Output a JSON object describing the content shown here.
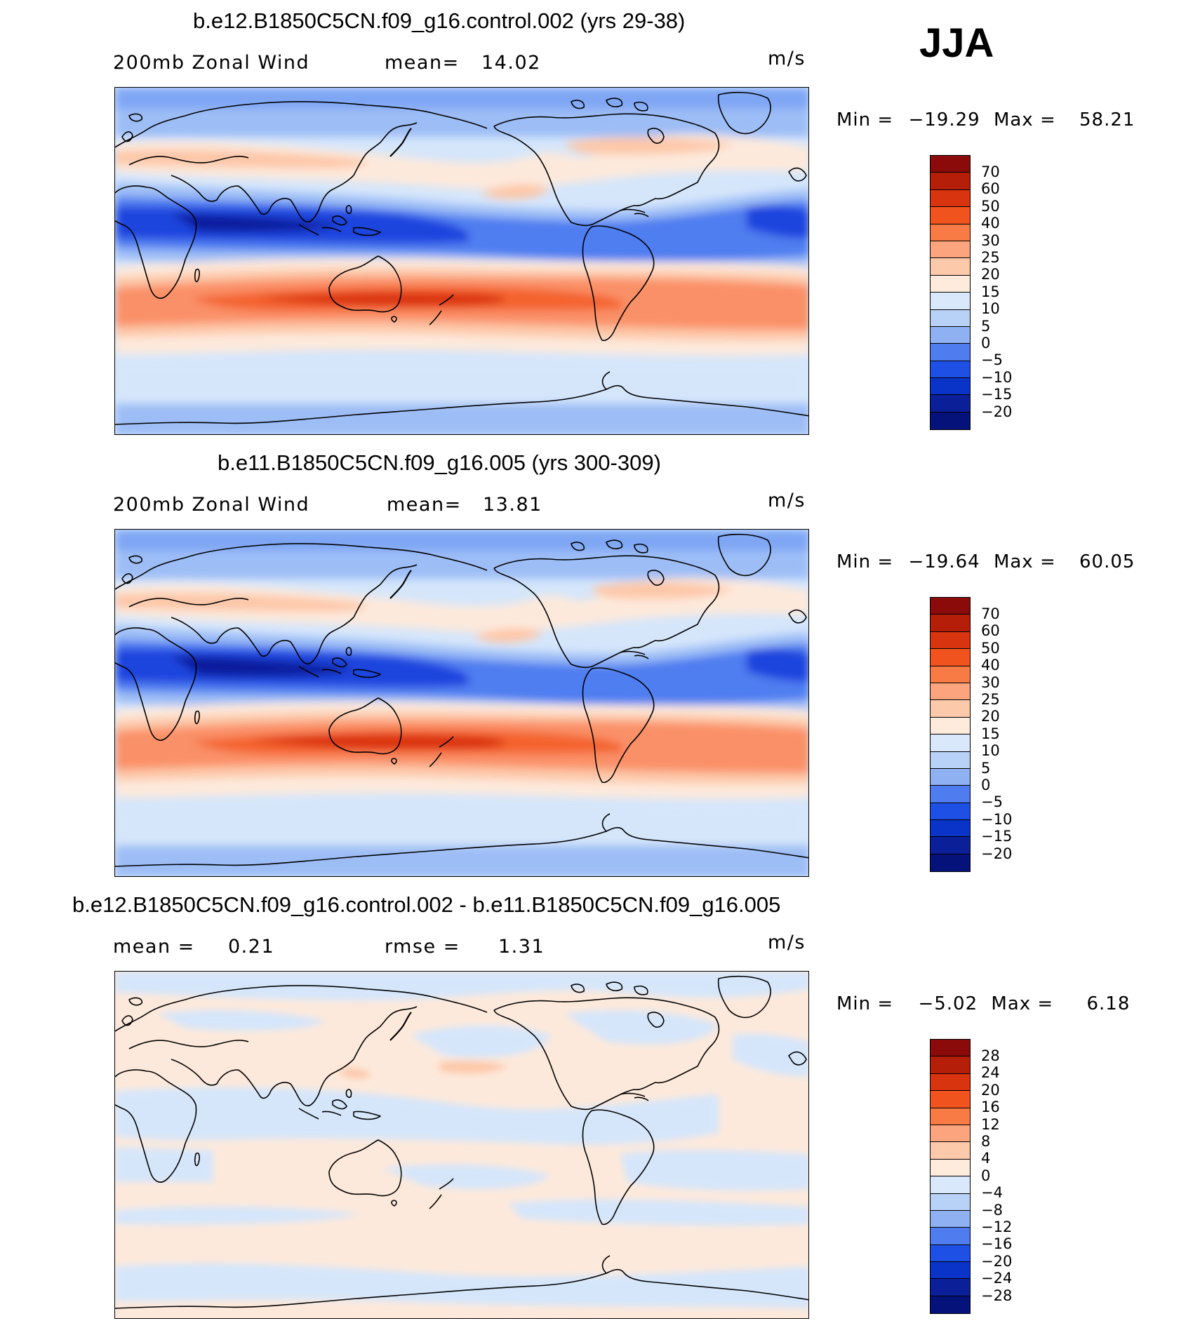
{
  "season": "JJA",
  "colors": {
    "neg4": "#0c1f9e",
    "neg3": "#1c44de",
    "neg2": "#4f7ef0",
    "neg1": "#9dbdf6",
    "zero": "#d5e6fb",
    "pos0": "#fde9db",
    "pos1": "#fdc7a8",
    "pos2": "#fa9068",
    "pos3": "#f4632d",
    "pos4": "#d9300f",
    "land_line": "#000000"
  },
  "panels": [
    {
      "title": "b.e12.B1850C5CN.f09_g16.control.002 (yrs 29-38)",
      "variable": "200mb Zonal Wind",
      "stat1_label": "mean=",
      "stat1_value": "14.02",
      "stat2_label": "",
      "stat2_value": "",
      "units": "m/s",
      "min_label": "Min =",
      "min_value": "−19.29",
      "max_label": "Max =",
      "max_value": "58.21",
      "colorbar_labels": [
        "70",
        "60",
        "50",
        "40",
        "30",
        "25",
        "20",
        "15",
        "10",
        "5",
        "0",
        "−5",
        "−10",
        "−15",
        "−20"
      ],
      "colorbar_colors": [
        "#8b0a0a",
        "#b51f0a",
        "#d93410",
        "#f0531e",
        "#f87b46",
        "#fba47e",
        "#fdc9ab",
        "#feebdc",
        "#d9e8fa",
        "#b8d1f6",
        "#8fb1f2",
        "#4f7df0",
        "#1f50e6",
        "#0a34c8",
        "#0a1f98",
        "#05127a"
      ]
    },
    {
      "title": "b.e11.B1850C5CN.f09_g16.005 (yrs 300-309)",
      "variable": "200mb Zonal Wind",
      "stat1_label": "mean=",
      "stat1_value": "13.81",
      "stat2_label": "",
      "stat2_value": "",
      "units": "m/s",
      "min_label": "Min =",
      "min_value": "−19.64",
      "max_label": "Max =",
      "max_value": "60.05",
      "colorbar_labels": [
        "70",
        "60",
        "50",
        "40",
        "30",
        "25",
        "20",
        "15",
        "10",
        "5",
        "0",
        "−5",
        "−10",
        "−15",
        "−20"
      ],
      "colorbar_colors": [
        "#8b0a0a",
        "#b51f0a",
        "#d93410",
        "#f0531e",
        "#f87b46",
        "#fba47e",
        "#fdc9ab",
        "#feebdc",
        "#d9e8fa",
        "#b8d1f6",
        "#8fb1f2",
        "#4f7df0",
        "#1f50e6",
        "#0a34c8",
        "#0a1f98",
        "#05127a"
      ]
    },
    {
      "title": "b.e12.B1850C5CN.f09_g16.control.002 - b.e11.B1850C5CN.f09_g16.005",
      "variable": "",
      "stat1_label": "mean =",
      "stat1_value": "0.21",
      "stat2_label": "rmse =",
      "stat2_value": "1.31",
      "units": "m/s",
      "min_label": "Min =",
      "min_value": "−5.02",
      "max_label": "Max =",
      "max_value": "6.18",
      "colorbar_labels": [
        "28",
        "24",
        "20",
        "16",
        "12",
        "8",
        "4",
        "0",
        "−4",
        "−8",
        "−12",
        "−16",
        "−20",
        "−24",
        "−28"
      ],
      "colorbar_colors": [
        "#8b0a0a",
        "#b51f0a",
        "#d93410",
        "#f0531e",
        "#f87b46",
        "#fba47e",
        "#fdc9ab",
        "#feebdc",
        "#d9e8fa",
        "#b8d1f6",
        "#8fb1f2",
        "#4f7df0",
        "#1f50e6",
        "#0a34c8",
        "#0a1f98",
        "#05127a"
      ]
    }
  ]
}
